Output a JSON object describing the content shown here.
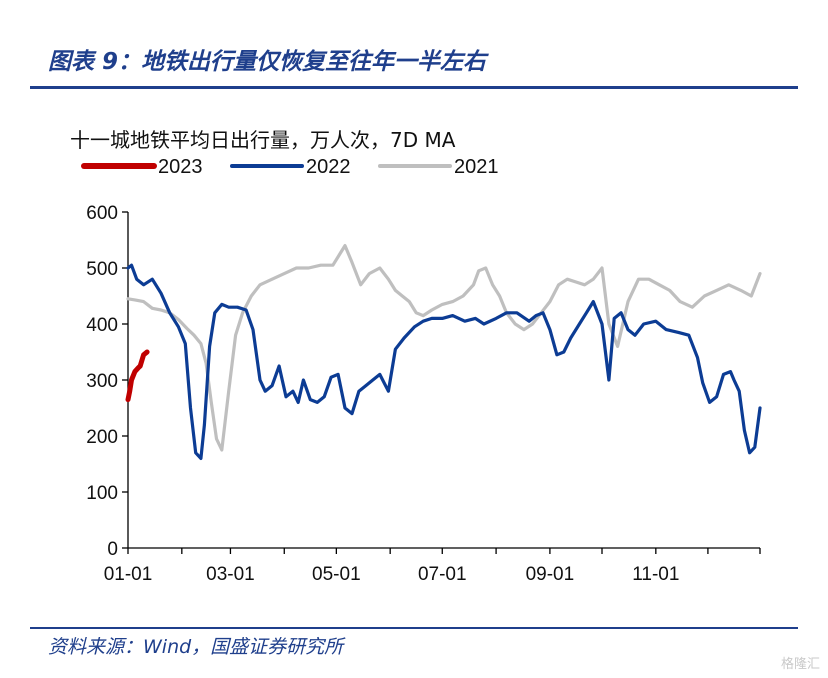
{
  "header": {
    "figure_title": "图表 9：地铁出行量仅恢复至往年一半左右"
  },
  "footer": {
    "source": "资料来源：Wind，国盛证券研究所",
    "watermark": "格隆汇"
  },
  "colors": {
    "brand_blue": "#1f3f8c",
    "series_2023": "#c00000",
    "series_2022": "#0c3c94",
    "series_2021": "#bfbfbf"
  },
  "chart_data": {
    "type": "line",
    "title": "十一城地铁平均日出行量，万人次，7D MA",
    "xlabel": "",
    "ylabel": "",
    "ylim": [
      0,
      600
    ],
    "yticks": [
      0,
      100,
      200,
      300,
      400,
      500,
      600
    ],
    "xlim": [
      "01-01",
      "12-31"
    ],
    "xticks": [
      "01-01",
      "03-01",
      "05-01",
      "07-01",
      "09-01",
      "11-01"
    ],
    "grid": false,
    "legend": "top-left",
    "series": [
      {
        "name": "2023",
        "color": "#c00000",
        "x": [
          "01-01",
          "01-02",
          "01-03",
          "01-05",
          "01-07",
          "01-08",
          "01-10",
          "01-12"
        ],
        "y": [
          265,
          280,
          300,
          315,
          322,
          325,
          345,
          350
        ]
      },
      {
        "name": "2022",
        "color": "#0c3c94",
        "x": [
          "01-01",
          "01-03",
          "01-06",
          "01-10",
          "01-15",
          "01-20",
          "01-25",
          "01-30",
          "02-03",
          "02-06",
          "02-09",
          "02-12",
          "02-14",
          "02-17",
          "02-20",
          "02-24",
          "02-28",
          "03-05",
          "03-10",
          "03-14",
          "03-18",
          "03-21",
          "03-25",
          "03-29",
          "04-02",
          "04-06",
          "04-09",
          "04-12",
          "04-16",
          "04-20",
          "04-24",
          "04-28",
          "05-02",
          "05-06",
          "05-10",
          "05-14",
          "05-18",
          "05-22",
          "05-26",
          "05-31",
          "06-04",
          "06-09",
          "06-15",
          "06-20",
          "06-25",
          "07-01",
          "07-07",
          "07-14",
          "07-20",
          "07-25",
          "08-01",
          "08-07",
          "08-13",
          "08-20",
          "08-24",
          "08-28",
          "09-01",
          "09-05",
          "09-09",
          "09-13",
          "09-18",
          "09-22",
          "09-26",
          "10-01",
          "10-05",
          "10-08",
          "10-12",
          "10-16",
          "10-20",
          "10-25",
          "11-01",
          "11-07",
          "11-14",
          "11-20",
          "11-25",
          "11-28",
          "12-02",
          "12-06",
          "12-10",
          "12-14",
          "12-16",
          "12-19",
          "12-22",
          "12-25",
          "12-28",
          "12-31"
        ],
        "y": [
          500,
          505,
          480,
          470,
          480,
          455,
          420,
          395,
          365,
          250,
          170,
          160,
          220,
          360,
          420,
          435,
          430,
          430,
          425,
          390,
          300,
          280,
          290,
          325,
          270,
          280,
          260,
          300,
          265,
          260,
          270,
          305,
          310,
          250,
          240,
          280,
          290,
          300,
          310,
          280,
          355,
          375,
          395,
          405,
          410,
          410,
          415,
          405,
          410,
          400,
          410,
          420,
          420,
          405,
          415,
          420,
          390,
          345,
          350,
          375,
          400,
          420,
          440,
          400,
          300,
          410,
          420,
          390,
          380,
          400,
          405,
          390,
          385,
          380,
          340,
          295,
          260,
          270,
          310,
          315,
          300,
          280,
          210,
          170,
          180,
          250
        ]
      },
      {
        "name": "2021",
        "color": "#bfbfbf",
        "x": [
          "01-01",
          "01-05",
          "01-10",
          "01-15",
          "01-20",
          "01-25",
          "01-30",
          "02-04",
          "02-08",
          "02-12",
          "02-15",
          "02-18",
          "02-21",
          "02-24",
          "02-28",
          "03-04",
          "03-08",
          "03-13",
          "03-18",
          "03-25",
          "04-01",
          "04-08",
          "04-15",
          "04-22",
          "04-29",
          "05-03",
          "05-06",
          "05-10",
          "05-15",
          "05-20",
          "05-26",
          "05-31",
          "06-04",
          "06-08",
          "06-12",
          "06-16",
          "06-20",
          "06-25",
          "07-01",
          "07-07",
          "07-13",
          "07-19",
          "07-22",
          "07-26",
          "07-30",
          "08-03",
          "08-07",
          "08-12",
          "08-17",
          "08-22",
          "08-27",
          "09-01",
          "09-06",
          "09-11",
          "09-16",
          "09-21",
          "09-26",
          "10-01",
          "10-05",
          "10-10",
          "10-16",
          "10-22",
          "10-28",
          "11-03",
          "11-09",
          "11-15",
          "11-22",
          "11-29",
          "12-06",
          "12-13",
          "12-20",
          "12-26",
          "12-31"
        ],
        "y": [
          445,
          443,
          440,
          428,
          425,
          420,
          408,
          392,
          380,
          365,
          330,
          260,
          195,
          175,
          280,
          380,
          420,
          450,
          470,
          480,
          490,
          500,
          500,
          505,
          505,
          525,
          540,
          510,
          470,
          490,
          500,
          480,
          460,
          450,
          440,
          420,
          415,
          425,
          435,
          440,
          450,
          470,
          495,
          500,
          470,
          450,
          420,
          400,
          390,
          400,
          420,
          440,
          470,
          480,
          475,
          470,
          480,
          500,
          400,
          360,
          440,
          480,
          480,
          470,
          460,
          440,
          430,
          450,
          460,
          470,
          460,
          450,
          490
        ]
      }
    ]
  }
}
